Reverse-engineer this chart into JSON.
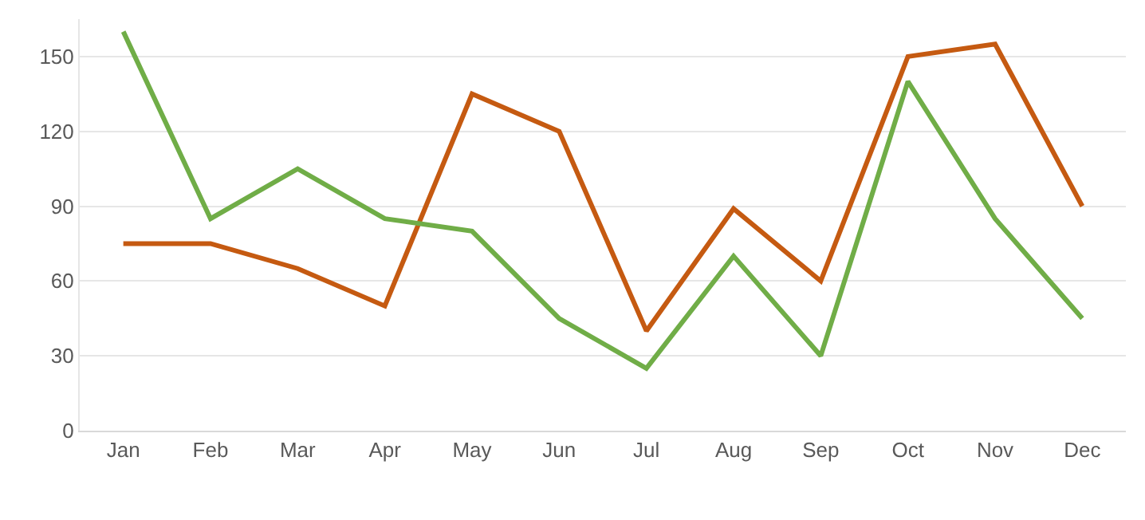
{
  "chart_data": {
    "type": "line",
    "categories": [
      "Jan",
      "Feb",
      "Mar",
      "Apr",
      "May",
      "Jun",
      "Jul",
      "Aug",
      "Sep",
      "Oct",
      "Nov",
      "Dec"
    ],
    "series": [
      {
        "color": "#c55a11",
        "values": [
          75,
          75,
          65,
          50,
          135,
          120,
          40,
          89,
          60,
          150,
          155,
          90
        ]
      },
      {
        "color": "#70ad47",
        "values": [
          160,
          85,
          105,
          85,
          80,
          45,
          25,
          70,
          30,
          140,
          85,
          45
        ]
      }
    ],
    "ylim": [
      0,
      165
    ],
    "yticks": [
      0,
      30,
      60,
      90,
      120,
      150
    ],
    "grid": "y",
    "marker": "none",
    "line_style": "solid"
  }
}
